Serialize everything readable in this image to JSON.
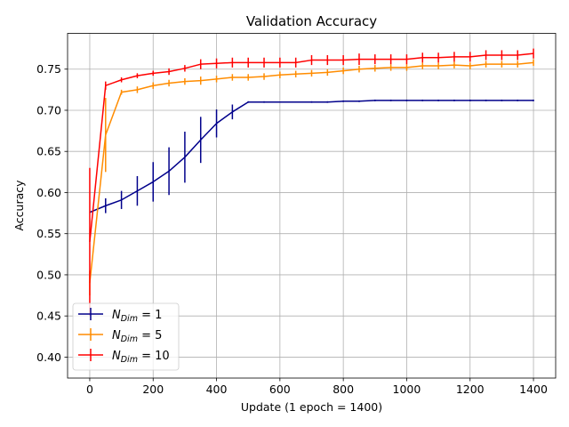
{
  "chart_data": {
    "type": "line",
    "title": "Validation Accuracy",
    "xlabel": "Update (1 epoch = 1400)",
    "ylabel": "Accuracy",
    "xlim": [
      -70,
      1470
    ],
    "ylim": [
      0.3745,
      0.7935
    ],
    "xticks": [
      0,
      200,
      400,
      600,
      800,
      1000,
      1200,
      1400
    ],
    "yticks": [
      0.4,
      0.45,
      0.5,
      0.55,
      0.6,
      0.65,
      0.7,
      0.75
    ],
    "grid": true,
    "legend_position": "lower-left",
    "x": [
      0,
      50,
      100,
      150,
      200,
      250,
      300,
      350,
      400,
      450,
      500,
      550,
      600,
      650,
      700,
      750,
      800,
      850,
      900,
      950,
      1000,
      1050,
      1100,
      1150,
      1200,
      1250,
      1300,
      1350,
      1400
    ],
    "series": [
      {
        "legend_prefix": "N",
        "legend_sub": "Dim",
        "legend_suffix": " = 1",
        "color": "#00008b",
        "values": [
          0.576,
          0.584,
          0.591,
          0.602,
          0.613,
          0.626,
          0.643,
          0.664,
          0.684,
          0.698,
          0.71,
          0.71,
          0.71,
          0.71,
          0.71,
          0.71,
          0.711,
          0.711,
          0.712,
          0.712,
          0.712,
          0.712,
          0.712,
          0.712,
          0.712,
          0.712,
          0.712,
          0.712,
          0.712
        ],
        "errors": [
          0,
          0.009,
          0.011,
          0.018,
          0.024,
          0.029,
          0.031,
          0.028,
          0.017,
          0.009,
          0.001,
          0.001,
          0,
          0,
          0.001,
          0.001,
          0.001,
          0.001,
          0.001,
          0.001,
          0.001,
          0.001,
          0.001,
          0.001,
          0.001,
          0.001,
          0.001,
          0.001,
          0.001
        ]
      },
      {
        "legend_prefix": "N",
        "legend_sub": "Dim",
        "legend_suffix": " = 5",
        "color": "#ff8c00",
        "values": [
          0.49,
          0.67,
          0.722,
          0.725,
          0.73,
          0.733,
          0.735,
          0.736,
          0.738,
          0.74,
          0.74,
          0.741,
          0.743,
          0.744,
          0.745,
          0.746,
          0.748,
          0.75,
          0.751,
          0.752,
          0.752,
          0.754,
          0.754,
          0.755,
          0.754,
          0.756,
          0.756,
          0.756,
          0.758
        ],
        "errors": [
          0.015,
          0.045,
          0.003,
          0.004,
          0.004,
          0.004,
          0.004,
          0.005,
          0.004,
          0.004,
          0.004,
          0.004,
          0.004,
          0.004,
          0.004,
          0.004,
          0.004,
          0.004,
          0.004,
          0.004,
          0.004,
          0.004,
          0.004,
          0.004,
          0.004,
          0.004,
          0.004,
          0.004,
          0.004
        ]
      },
      {
        "legend_prefix": "N",
        "legend_sub": "Dim",
        "legend_suffix": " = 10",
        "color": "#ff0000",
        "values": [
          0.54,
          0.73,
          0.737,
          0.742,
          0.745,
          0.747,
          0.751,
          0.756,
          0.757,
          0.758,
          0.758,
          0.758,
          0.758,
          0.758,
          0.761,
          0.761,
          0.761,
          0.762,
          0.762,
          0.762,
          0.762,
          0.764,
          0.764,
          0.765,
          0.765,
          0.767,
          0.767,
          0.767,
          0.769
        ],
        "errors": [
          0.09,
          0.005,
          0.003,
          0.003,
          0.003,
          0.004,
          0.004,
          0.006,
          0.006,
          0.006,
          0.006,
          0.006,
          0.006,
          0.006,
          0.006,
          0.006,
          0.006,
          0.007,
          0.006,
          0.006,
          0.006,
          0.006,
          0.006,
          0.006,
          0.006,
          0.006,
          0.006,
          0.006,
          0.006
        ]
      }
    ]
  }
}
